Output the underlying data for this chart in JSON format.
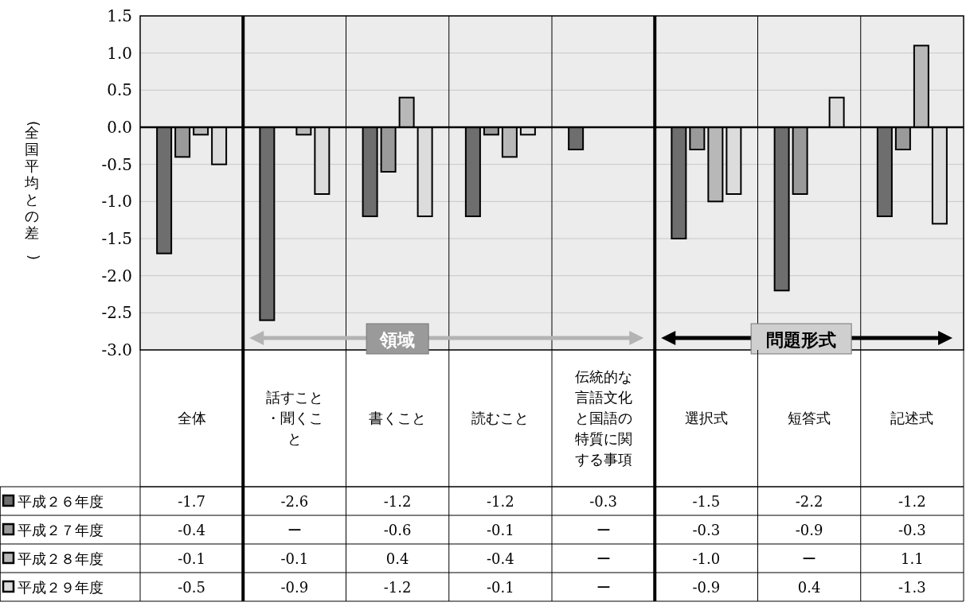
{
  "chart_data": {
    "type": "bar",
    "ylabel": "(全国平均との差)",
    "categories": [
      "全体",
      "話すこと・聞くこと",
      "書くこと",
      "読むこと",
      "伝統的な言語文化と国語の特質に関する事項",
      "選択式",
      "短答式",
      "記述式"
    ],
    "series": [
      {
        "name": "平成２６年度",
        "color": "#6e6e6e",
        "values": [
          -1.7,
          -2.6,
          -1.2,
          -1.2,
          -0.3,
          -1.5,
          -2.2,
          -1.2
        ],
        "value_labels": [
          "-1.7",
          "-2.6",
          "-1.2",
          "-1.2",
          "-0.3",
          "-1.5",
          "-2.2",
          "-1.2"
        ]
      },
      {
        "name": "平成２７年度",
        "color": "#9a9a9a",
        "values": [
          -0.4,
          null,
          -0.6,
          -0.1,
          null,
          -0.3,
          -0.9,
          -0.3
        ],
        "value_labels": [
          "-0.4",
          "ー",
          "-0.6",
          "-0.1",
          "ー",
          "-0.3",
          "-0.9",
          "-0.3"
        ]
      },
      {
        "name": "平成２８年度",
        "color": "#b8b8b8",
        "values": [
          -0.1,
          -0.1,
          0.4,
          -0.4,
          null,
          -1.0,
          null,
          1.1
        ],
        "value_labels": [
          "-0.1",
          "-0.1",
          "0.4",
          "-0.4",
          "ー",
          "-1.0",
          "ー",
          "1.1"
        ]
      },
      {
        "name": "平成２９年度",
        "color": "#dcdcdc",
        "values": [
          -0.5,
          -0.9,
          -1.2,
          -0.1,
          null,
          -0.9,
          0.4,
          -1.3
        ],
        "value_labels": [
          "-0.5",
          "-0.9",
          "-1.2",
          "-0.1",
          "ー",
          "-0.9",
          "0.4",
          "-1.3"
        ]
      }
    ],
    "ylim": [
      -3.0,
      1.5
    ],
    "yticks": [
      {
        "value": -3.0,
        "label": "-3.0"
      },
      {
        "value": -2.5,
        "label": "-2.5"
      },
      {
        "value": -2.0,
        "label": "-2.0"
      },
      {
        "value": -1.5,
        "label": "-1.5"
      },
      {
        "value": -1.0,
        "label": "-1.0"
      },
      {
        "value": -0.5,
        "label": "-0.5"
      },
      {
        "value": 0.0,
        "label": "0.0"
      },
      {
        "value": 0.5,
        "label": "0.5"
      },
      {
        "value": 1.0,
        "label": "1.0"
      },
      {
        "value": 1.5,
        "label": "1.5"
      }
    ],
    "grid": "y",
    "legend": "bottom",
    "annotations": [
      "領域",
      "問題形式"
    ]
  }
}
